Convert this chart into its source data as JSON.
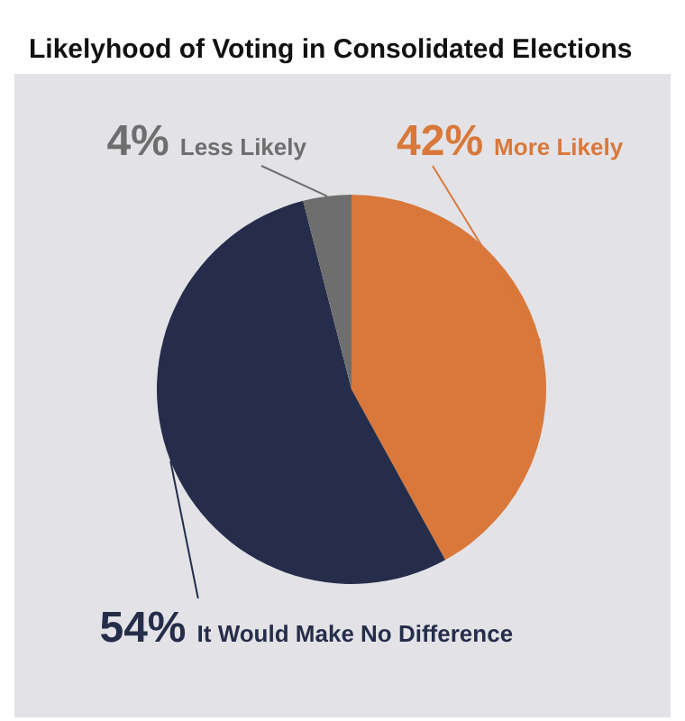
{
  "chart_data": {
    "type": "pie",
    "title": "Likelyhood of Voting in Consolidated Elections",
    "categories": [
      "More Likely",
      "It Would Make No Difference",
      "Less Likely"
    ],
    "values": [
      42,
      54,
      4
    ],
    "value_labels": [
      "42%",
      "54%",
      "4%"
    ],
    "colors": [
      "#d9783a",
      "#252d4a",
      "#6e6e6e"
    ]
  }
}
